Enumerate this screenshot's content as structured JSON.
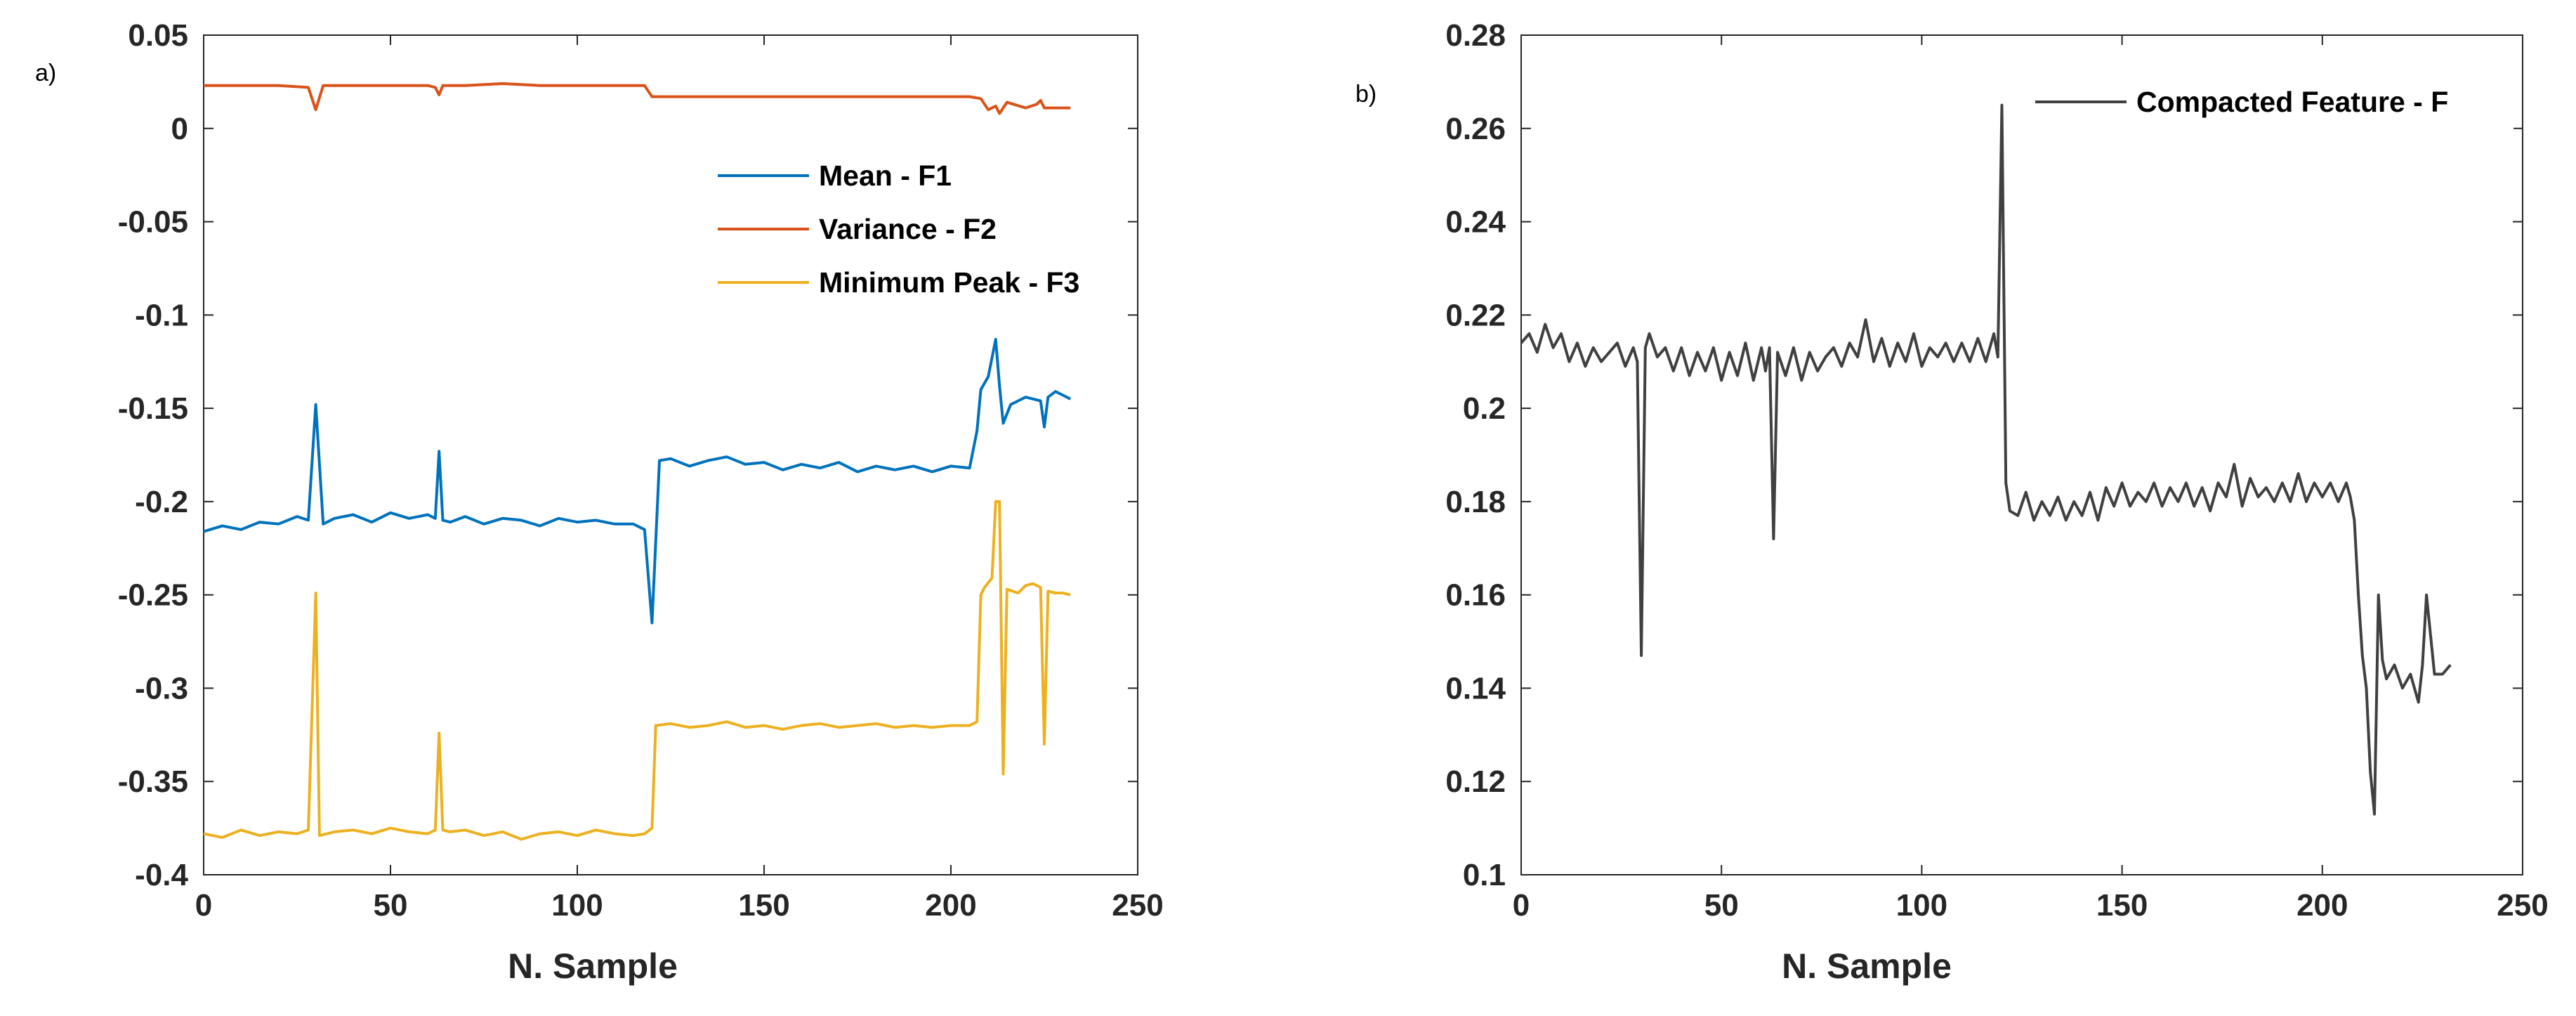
{
  "chart_data": [
    {
      "panel_label": "a)",
      "type": "line",
      "title": "",
      "xlabel": "N. Sample",
      "ylabel": "",
      "xlim": [
        0,
        250
      ],
      "ylim": [
        -0.4,
        0.05
      ],
      "xticks": [
        0,
        50,
        100,
        150,
        200,
        250
      ],
      "xtick_labels": [
        "0",
        "50",
        "100",
        "150",
        "200",
        "250"
      ],
      "yticks": [
        0.05,
        0,
        -0.05,
        -0.1,
        -0.15,
        -0.2,
        -0.25,
        -0.3,
        -0.35,
        -0.4
      ],
      "ytick_labels": [
        "0.05",
        "0",
        "-0.05",
        "-0.1",
        "-0.15",
        "-0.2",
        "-0.25",
        "-0.3",
        "-0.35",
        "-0.4"
      ],
      "grid": false,
      "legend_position": "upper-right-inside",
      "series": [
        {
          "name": "Mean - F1",
          "color": "#0072BD",
          "x": [
            0,
            5,
            10,
            15,
            20,
            25,
            28,
            30,
            32,
            35,
            40,
            45,
            50,
            55,
            60,
            62,
            63,
            64,
            66,
            70,
            75,
            80,
            85,
            90,
            95,
            100,
            105,
            110,
            115,
            118,
            120,
            122,
            125,
            130,
            135,
            140,
            145,
            150,
            155,
            160,
            165,
            170,
            175,
            180,
            185,
            190,
            195,
            200,
            205,
            207,
            208,
            210,
            212,
            213,
            214,
            216,
            218,
            220,
            222,
            224,
            225,
            226,
            228,
            230,
            232
          ],
          "y": [
            -0.216,
            -0.213,
            -0.215,
            -0.211,
            -0.212,
            -0.208,
            -0.21,
            -0.148,
            -0.212,
            -0.209,
            -0.207,
            -0.211,
            -0.206,
            -0.209,
            -0.207,
            -0.209,
            -0.173,
            -0.21,
            -0.211,
            -0.208,
            -0.212,
            -0.209,
            -0.21,
            -0.213,
            -0.209,
            -0.211,
            -0.21,
            -0.212,
            -0.212,
            -0.215,
            -0.265,
            -0.178,
            -0.177,
            -0.181,
            -0.178,
            -0.176,
            -0.18,
            -0.179,
            -0.183,
            -0.18,
            -0.182,
            -0.179,
            -0.184,
            -0.181,
            -0.183,
            -0.181,
            -0.184,
            -0.181,
            -0.182,
            -0.162,
            -0.14,
            -0.133,
            -0.113,
            -0.138,
            -0.158,
            -0.148,
            -0.146,
            -0.144,
            -0.145,
            -0.146,
            -0.16,
            -0.144,
            -0.141,
            -0.143,
            -0.145
          ]
        },
        {
          "name": "Variance - F2",
          "color": "#D95319",
          "x": [
            0,
            10,
            20,
            28,
            30,
            32,
            40,
            50,
            60,
            62,
            63,
            64,
            70,
            80,
            90,
            100,
            110,
            118,
            120,
            125,
            140,
            160,
            180,
            200,
            205,
            208,
            210,
            212,
            213,
            215,
            220,
            223,
            224,
            225,
            230,
            232
          ],
          "y": [
            0.023,
            0.023,
            0.023,
            0.022,
            0.01,
            0.023,
            0.023,
            0.023,
            0.023,
            0.022,
            0.018,
            0.023,
            0.023,
            0.024,
            0.023,
            0.023,
            0.023,
            0.023,
            0.017,
            0.017,
            0.017,
            0.017,
            0.017,
            0.017,
            0.017,
            0.016,
            0.01,
            0.012,
            0.008,
            0.014,
            0.011,
            0.013,
            0.015,
            0.011,
            0.011,
            0.011
          ]
        },
        {
          "name": "Minimum Peak - F3",
          "color": "#EDB120",
          "x": [
            0,
            5,
            10,
            15,
            20,
            25,
            28,
            30,
            31,
            35,
            40,
            45,
            50,
            55,
            60,
            62,
            63,
            64,
            66,
            70,
            75,
            80,
            85,
            90,
            95,
            100,
            105,
            110,
            115,
            118,
            120,
            121,
            125,
            130,
            135,
            140,
            145,
            150,
            155,
            160,
            165,
            170,
            175,
            180,
            185,
            190,
            195,
            200,
            205,
            207,
            208,
            209,
            211,
            212,
            213,
            214,
            215,
            218,
            220,
            222,
            224,
            225,
            226,
            228,
            230,
            232
          ],
          "y": [
            -0.378,
            -0.38,
            -0.376,
            -0.379,
            -0.377,
            -0.378,
            -0.376,
            -0.249,
            -0.379,
            -0.377,
            -0.376,
            -0.378,
            -0.375,
            -0.377,
            -0.378,
            -0.376,
            -0.324,
            -0.376,
            -0.377,
            -0.376,
            -0.379,
            -0.377,
            -0.381,
            -0.378,
            -0.377,
            -0.379,
            -0.376,
            -0.378,
            -0.379,
            -0.378,
            -0.375,
            -0.32,
            -0.319,
            -0.321,
            -0.32,
            -0.318,
            -0.321,
            -0.32,
            -0.322,
            -0.32,
            -0.319,
            -0.321,
            -0.32,
            -0.319,
            -0.321,
            -0.32,
            -0.321,
            -0.32,
            -0.32,
            -0.318,
            -0.25,
            -0.246,
            -0.241,
            -0.2,
            -0.2,
            -0.346,
            -0.247,
            -0.249,
            -0.245,
            -0.244,
            -0.246,
            -0.33,
            -0.248,
            -0.249,
            -0.249,
            -0.25
          ]
        }
      ]
    },
    {
      "panel_label": "b)",
      "type": "line",
      "title": "",
      "xlabel": "N. Sample",
      "ylabel": "",
      "xlim": [
        0,
        250
      ],
      "ylim": [
        0.1,
        0.28
      ],
      "xticks": [
        0,
        50,
        100,
        150,
        200,
        250
      ],
      "xtick_labels": [
        "0",
        "50",
        "100",
        "150",
        "200",
        "250"
      ],
      "yticks": [
        0.28,
        0.26,
        0.24,
        0.22,
        0.2,
        0.18,
        0.16,
        0.14,
        0.12,
        0.1
      ],
      "ytick_labels": [
        "0.28",
        "0.26",
        "0.24",
        "0.22",
        "0.2",
        "0.18",
        "0.16",
        "0.14",
        "0.12",
        "0.1"
      ],
      "grid": false,
      "legend_position": "top-right-inside",
      "series": [
        {
          "name": "Compacted Feature - F",
          "color": "#404040",
          "x": [
            0,
            2,
            4,
            6,
            8,
            10,
            12,
            14,
            16,
            18,
            20,
            22,
            24,
            26,
            28,
            29,
            30,
            31,
            32,
            34,
            36,
            38,
            40,
            42,
            44,
            46,
            48,
            50,
            52,
            54,
            56,
            58,
            60,
            61,
            62,
            63,
            64,
            66,
            68,
            70,
            72,
            74,
            76,
            78,
            80,
            82,
            84,
            86,
            88,
            90,
            92,
            94,
            96,
            98,
            100,
            102,
            104,
            106,
            108,
            110,
            112,
            114,
            116,
            118,
            119,
            120,
            121,
            122,
            124,
            126,
            128,
            130,
            132,
            134,
            136,
            138,
            140,
            142,
            144,
            146,
            148,
            150,
            152,
            154,
            156,
            158,
            160,
            162,
            164,
            166,
            168,
            170,
            172,
            174,
            176,
            178,
            180,
            182,
            184,
            186,
            188,
            190,
            192,
            194,
            196,
            198,
            200,
            202,
            204,
            206,
            207,
            208,
            209,
            210,
            211,
            212,
            213,
            214,
            215,
            216,
            218,
            220,
            222,
            224,
            225,
            226,
            228,
            230,
            232
          ],
          "y": [
            0.214,
            0.216,
            0.212,
            0.218,
            0.213,
            0.216,
            0.21,
            0.214,
            0.209,
            0.213,
            0.21,
            0.212,
            0.214,
            0.209,
            0.213,
            0.21,
            0.147,
            0.213,
            0.216,
            0.211,
            0.213,
            0.208,
            0.213,
            0.207,
            0.212,
            0.208,
            0.213,
            0.206,
            0.212,
            0.207,
            0.214,
            0.206,
            0.213,
            0.208,
            0.213,
            0.172,
            0.212,
            0.207,
            0.213,
            0.206,
            0.212,
            0.208,
            0.211,
            0.213,
            0.209,
            0.214,
            0.211,
            0.219,
            0.21,
            0.215,
            0.209,
            0.214,
            0.21,
            0.216,
            0.209,
            0.213,
            0.211,
            0.214,
            0.21,
            0.214,
            0.21,
            0.215,
            0.21,
            0.216,
            0.211,
            0.265,
            0.184,
            0.178,
            0.177,
            0.182,
            0.176,
            0.18,
            0.177,
            0.181,
            0.176,
            0.18,
            0.177,
            0.182,
            0.176,
            0.183,
            0.179,
            0.184,
            0.179,
            0.182,
            0.18,
            0.184,
            0.179,
            0.183,
            0.18,
            0.184,
            0.179,
            0.183,
            0.178,
            0.184,
            0.181,
            0.188,
            0.179,
            0.185,
            0.181,
            0.183,
            0.18,
            0.184,
            0.18,
            0.186,
            0.18,
            0.184,
            0.181,
            0.184,
            0.18,
            0.184,
            0.181,
            0.176,
            0.16,
            0.147,
            0.14,
            0.122,
            0.113,
            0.16,
            0.146,
            0.142,
            0.145,
            0.14,
            0.143,
            0.137,
            0.145,
            0.16,
            0.143,
            0.143,
            0.145
          ]
        }
      ]
    }
  ]
}
